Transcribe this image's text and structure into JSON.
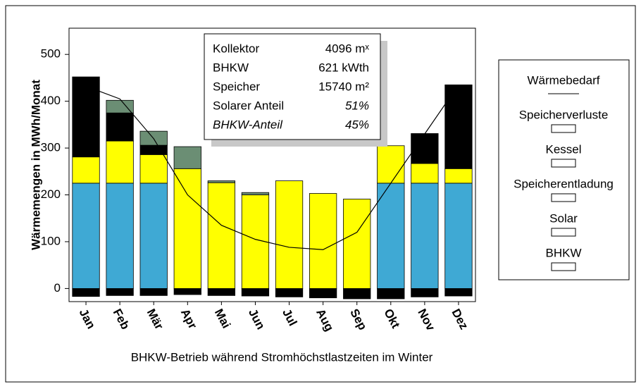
{
  "chart_data": {
    "type": "bar",
    "subtitle": "BHKW-Betrieb während Stromhöchstlastzeiten im Winter",
    "y_label": "Wärmemengen in MWh/Monat",
    "categories": [
      "Jan",
      "Feb",
      "Mär",
      "Apr",
      "Mai",
      "Jun",
      "Jul",
      "Aug",
      "Sep",
      "Okt",
      "Nov",
      "Dez"
    ],
    "series": [
      {
        "name": "BHKW",
        "color": "#3fa9d4",
        "values": [
          225,
          225,
          225,
          0,
          0,
          0,
          0,
          0,
          0,
          225,
          225,
          225
        ]
      },
      {
        "name": "Solar",
        "color": "#ffff00",
        "values": [
          56,
          90,
          61,
          256,
          226,
          200,
          230,
          203,
          191,
          80,
          42,
          31
        ]
      },
      {
        "name": "Kessel",
        "color": "#000000",
        "values": [
          171,
          60,
          20,
          0,
          0,
          0,
          0,
          0,
          0,
          0,
          64,
          179
        ]
      },
      {
        "name": "Speicherentladung",
        "color": "#6b8e74",
        "values": [
          0,
          27,
          30,
          47,
          4,
          5,
          0,
          0,
          0,
          0,
          0,
          0
        ]
      },
      {
        "name": "Speicherverluste",
        "color": "#000000",
        "values": [
          -17,
          -15,
          -15,
          -13,
          -15,
          -16,
          -18,
          -20,
          -22,
          -22,
          -18,
          -16
        ]
      },
      {
        "name": "Wärmebedarf",
        "color": "#000000",
        "line": true,
        "values": [
          432,
          405,
          320,
          200,
          135,
          105,
          88,
          83,
          120,
          225,
          330,
          435
        ]
      }
    ],
    "ylim": [
      -28,
      556
    ],
    "yticks": [
      0,
      100,
      200,
      300,
      400,
      500
    ],
    "info": [
      [
        "Kollektor",
        "4096 mˣ"
      ],
      [
        "BHKW",
        "621 kWth"
      ],
      [
        "Speicher",
        "15740 m²"
      ],
      [
        "Solarer Anteil",
        "51%"
      ],
      [
        "BHKW-Anteil",
        "45%"
      ]
    ]
  }
}
